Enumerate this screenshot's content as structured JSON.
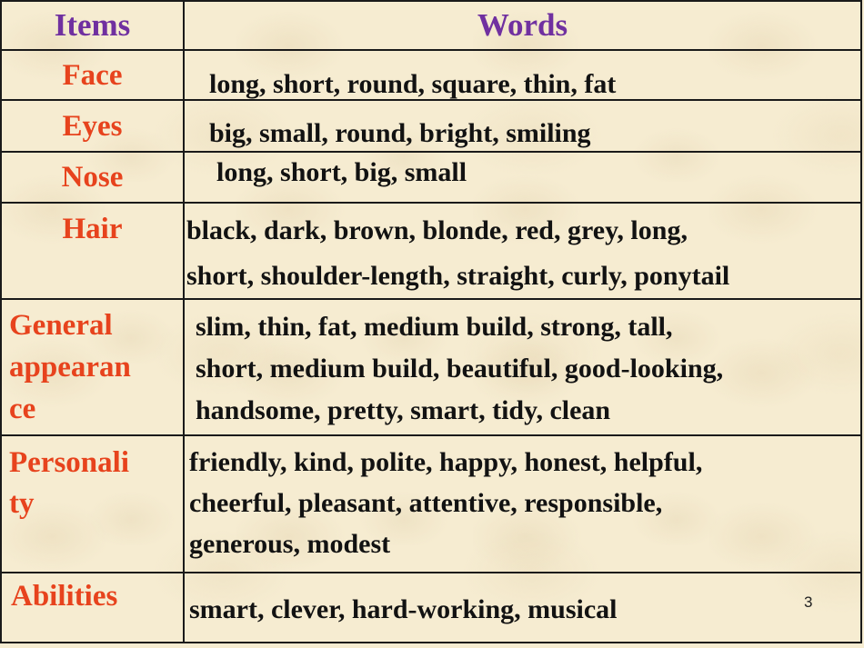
{
  "page": {
    "number": "3"
  },
  "colors": {
    "background": "#f6ecd1",
    "header_text": "#7030a0",
    "item_text": "#e7431d",
    "words_text": "#121212",
    "border": "#1a1a1a"
  },
  "table": {
    "headers": {
      "items": "Items",
      "words": "Words"
    },
    "rows": [
      {
        "item": "Face",
        "label_lines": [
          "Face"
        ],
        "words": "long, short, round, square, thin, fat",
        "words_lines": [
          "long, short, round, square, thin, fat"
        ]
      },
      {
        "item": "Eyes",
        "label_lines": [
          "Eyes"
        ],
        "words": "big, small, round, bright, smiling",
        "words_lines": [
          "big, small, round, bright, smiling"
        ]
      },
      {
        "item": "Nose",
        "label_lines": [
          "Nose"
        ],
        "words": "long, short, big, small",
        "words_lines": [
          "long, short, big, small"
        ]
      },
      {
        "item": "Hair",
        "label_lines": [
          "Hair"
        ],
        "words": "black, dark, brown, blonde, red, grey, long, short, shoulder-length, straight, curly, ponytail",
        "words_lines": [
          "black, dark, brown, blonde, red, grey, long,",
          "short, shoulder-length, straight, curly, ponytail"
        ]
      },
      {
        "item": "General appearance",
        "label_lines": [
          "General",
          "appearan",
          "ce"
        ],
        "words": "slim, thin, fat, medium build, strong, tall, short, medium build, beautiful, good-looking, handsome, pretty, smart, tidy, clean",
        "words_lines": [
          "slim, thin, fat, medium build, strong, tall,",
          "short, medium build, beautiful, good-looking,",
          "handsome, pretty, smart, tidy, clean"
        ]
      },
      {
        "item": "Personality",
        "label_lines": [
          "Personali",
          "ty"
        ],
        "words": "friendly, kind, polite, happy, honest, helpful, cheerful, pleasant, attentive, responsible, generous, modest",
        "words_lines": [
          "friendly, kind, polite, happy, honest, helpful,",
          "cheerful, pleasant, attentive, responsible,",
          "generous, modest"
        ]
      },
      {
        "item": "Abilities",
        "label_lines": [
          "Abilities"
        ],
        "words": "smart, clever, hard-working, musical",
        "words_lines": [
          "smart, clever, hard-working, musical"
        ]
      }
    ]
  }
}
